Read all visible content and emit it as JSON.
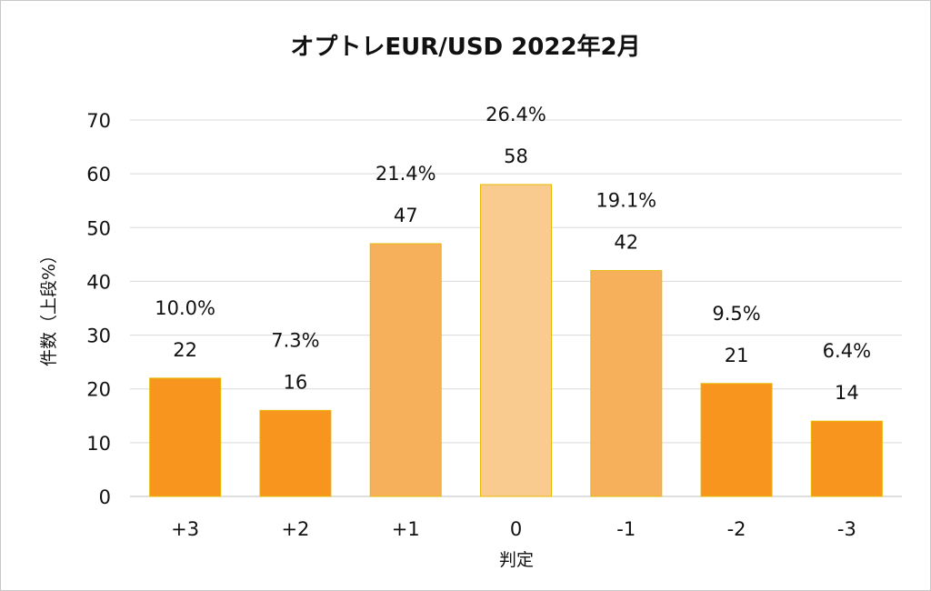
{
  "chart_data": {
    "type": "bar",
    "title": "オプトレEUR/USD 2022年2月",
    "xlabel": "判定",
    "ylabel": "件数（上段%）",
    "categories": [
      "+3",
      "+2",
      "+1",
      "0",
      "-1",
      "-2",
      "-3"
    ],
    "values": [
      22,
      16,
      47,
      58,
      42,
      21,
      14
    ],
    "percent_labels": [
      "10.0%",
      "7.3%",
      "21.4%",
      "26.4%",
      "19.1%",
      "9.5%",
      "6.4%"
    ],
    "bar_colors": [
      "#F7951E",
      "#F7951E",
      "#F6B05C",
      "#F9CB8E",
      "#F6B05C",
      "#F7951E",
      "#F7951E"
    ],
    "bar_border_color": "#E8B800",
    "ylim": [
      0,
      70
    ],
    "yticks": [
      0,
      10,
      20,
      30,
      40,
      50,
      60,
      70
    ],
    "grid": true,
    "legend": "none"
  }
}
